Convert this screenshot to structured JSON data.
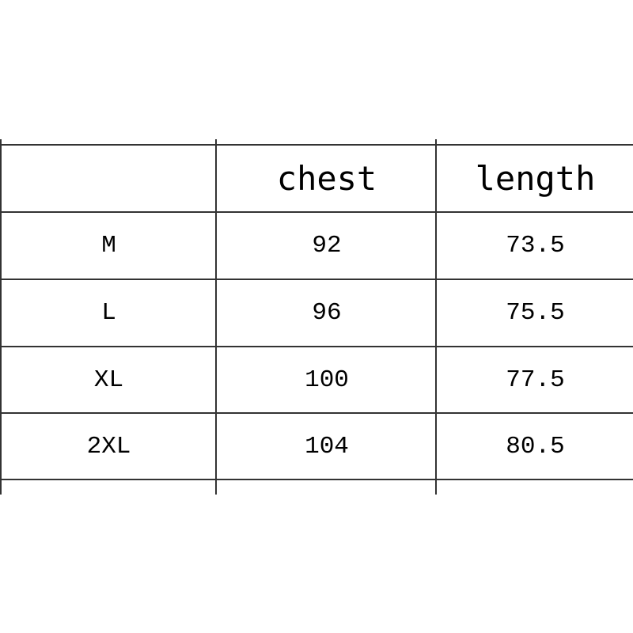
{
  "table": {
    "headers": [
      "",
      "chest",
      "length"
    ],
    "rows": [
      [
        "M",
        "92",
        "73.5"
      ],
      [
        "L",
        "96",
        "75.5"
      ],
      [
        "XL",
        "100",
        "77.5"
      ],
      [
        "2XL",
        "104",
        "80.5"
      ]
    ]
  }
}
